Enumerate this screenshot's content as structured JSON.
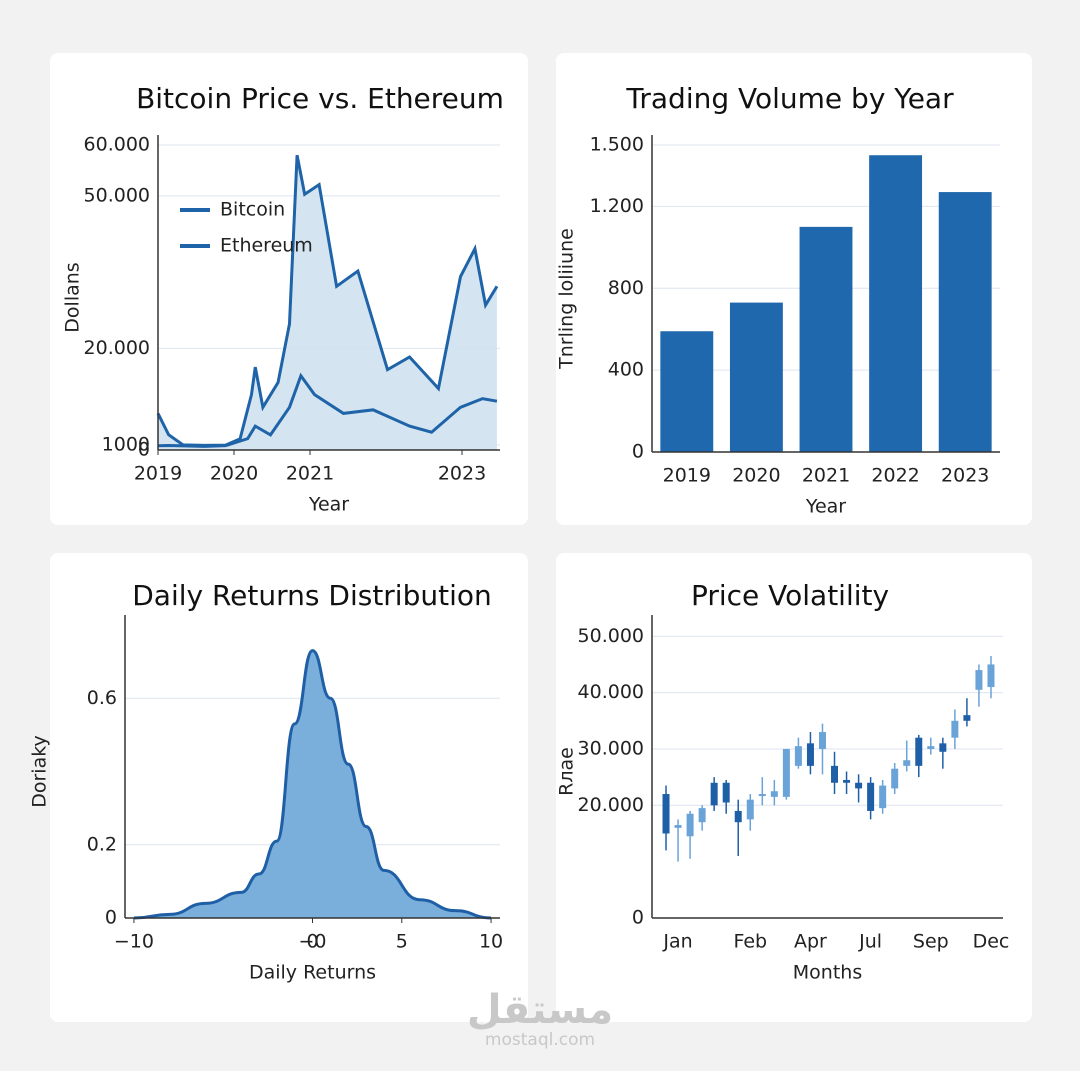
{
  "chart_data": [
    {
      "type": "line",
      "title": "Bitcoin Price vs. Ethereum",
      "xlabel": "Year",
      "ylabel": "Dollans",
      "xlim": [
        2019,
        2023.5
      ],
      "xticks": [
        2019,
        2020,
        2021,
        2023
      ],
      "ylim": [
        0,
        60000
      ],
      "yticks": [
        0,
        {
          "value": 1000,
          "label": "1000"
        },
        {
          "value": 20000,
          "label": "20.000"
        },
        {
          "value": 50000,
          "label": "50.000"
        },
        {
          "value": 60000,
          "label": "60.000"
        }
      ],
      "grid": true,
      "legend": "upper left",
      "series": [
        {
          "name": "Bitcoin",
          "color": "#1f63a8",
          "fill": "#cfe2f0",
          "x": [
            2019,
            2019.14,
            2019.33,
            2019.61,
            2019.89,
            2020.08,
            2020.23,
            2020.28,
            2020.38,
            2020.58,
            2020.73,
            2020.83,
            2020.93,
            2021.12,
            2021.35,
            2021.63,
            2022.02,
            2022.31,
            2022.69,
            2022.98,
            2023.17,
            2023.31,
            2023.46
          ],
          "values": [
            7200,
            3000,
            1000,
            900,
            970,
            2200,
            10900,
            16300,
            8400,
            13300,
            24800,
            58000,
            50300,
            52200,
            32200,
            35200,
            15800,
            18300,
            12100,
            34100,
            39600,
            28500,
            32200
          ]
        },
        {
          "name": "Ethereum",
          "color": "#1f63a8",
          "x": [
            2019,
            2019.14,
            2019.61,
            2019.89,
            2020.18,
            2020.28,
            2020.48,
            2020.73,
            2020.88,
            2021.06,
            2021.44,
            2021.83,
            2022.31,
            2022.6,
            2022.98,
            2023.27,
            2023.46
          ],
          "values": [
            830,
            890,
            710,
            860,
            2230,
            4700,
            2970,
            8400,
            14600,
            10900,
            7200,
            7900,
            4700,
            3500,
            8400,
            10100,
            9600
          ]
        }
      ]
    },
    {
      "type": "bar",
      "title": "Trading Volume by Year",
      "xlabel": "Year",
      "ylabel": "Tnrling loliiune",
      "categories": [
        "2019",
        "2020",
        "2021",
        "2022",
        "2023"
      ],
      "values": [
        590,
        730,
        1100,
        1450,
        1270
      ],
      "color": "#1f68ad",
      "ylim": [
        0,
        1500
      ],
      "yticks": [
        0,
        400,
        800,
        {
          "value": 1200,
          "label": "1.200"
        },
        {
          "value": 1500,
          "label": "1.500"
        }
      ],
      "grid": true
    },
    {
      "type": "area",
      "title": "Daily Returns Distribution",
      "xlabel": "Daily Returns",
      "ylabel": "Doriaky",
      "xlim": [
        -10.5,
        10.5
      ],
      "xticks": [
        {
          "value": -10,
          "label": "−10"
        },
        {
          "value": 0,
          "label": "−0"
        },
        0,
        5,
        10
      ],
      "ylim": [
        0,
        0.8
      ],
      "yticks": [
        0,
        0.2,
        0.6
      ],
      "grid": true,
      "color": "#1f5fa6",
      "fill": "#7aaedb",
      "x": [
        -10,
        -8,
        -6,
        -4,
        -3,
        -2,
        -1,
        0,
        1,
        2,
        3,
        4,
        6,
        8,
        10
      ],
      "values": [
        0.0,
        0.01,
        0.04,
        0.07,
        0.12,
        0.21,
        0.53,
        0.73,
        0.6,
        0.42,
        0.25,
        0.13,
        0.05,
        0.02,
        0.0
      ]
    },
    {
      "type": "candlestick",
      "title": "Price Volatility",
      "xlabel": "Months",
      "ylabel": "Rлae",
      "categories": [
        null,
        "Jan",
        null,
        null,
        null,
        null,
        null,
        "Feb",
        null,
        null,
        null,
        null,
        "Apr",
        null,
        null,
        null,
        null,
        "Jul",
        null,
        null,
        null,
        null,
        "Sep",
        null,
        null,
        null,
        null,
        "Dec"
      ],
      "ylim": [
        0,
        52000
      ],
      "yticks": [
        0,
        {
          "value": 20000,
          "label": "20.000"
        },
        {
          "value": 30000,
          "label": "30.000"
        },
        {
          "value": 40000,
          "label": "40.000"
        },
        {
          "value": 50000,
          "label": "50.000"
        }
      ],
      "grid": true,
      "up_color": "#6aa3d8",
      "down_color": "#1f5fa6",
      "open": [
        22000,
        16000,
        14500,
        17000,
        24000,
        24000,
        19000,
        17500,
        22000,
        21500,
        21500,
        27000,
        31000,
        30000,
        27000,
        24500,
        24000,
        24000,
        19500,
        23000,
        27000,
        32000,
        30000,
        31000,
        32000,
        36000,
        40500,
        41000
      ],
      "high": [
        23500,
        17500,
        19000,
        20000,
        25000,
        24500,
        21000,
        22000,
        25000,
        24500,
        30000,
        32000,
        33000,
        34500,
        29500,
        26000,
        25500,
        25000,
        24500,
        27500,
        31500,
        32500,
        32000,
        32000,
        37000,
        39000,
        45000,
        46500
      ],
      "low": [
        12000,
        10000,
        10500,
        15500,
        19000,
        18500,
        11000,
        15500,
        20000,
        20000,
        21000,
        26500,
        25500,
        25500,
        22000,
        22000,
        20500,
        17500,
        18500,
        22000,
        26000,
        25000,
        29000,
        26500,
        30000,
        34000,
        37500,
        39000
      ],
      "close": [
        15000,
        16500,
        18500,
        19500,
        20000,
        20500,
        17000,
        21000,
        22000,
        22500,
        30000,
        30500,
        27000,
        33000,
        24000,
        24000,
        23000,
        19000,
        23500,
        26500,
        28000,
        27000,
        30500,
        29500,
        35000,
        35000,
        44000,
        45000
      ]
    }
  ],
  "watermark": {
    "arabic": "مستقل",
    "latin": "mostaql.com"
  }
}
